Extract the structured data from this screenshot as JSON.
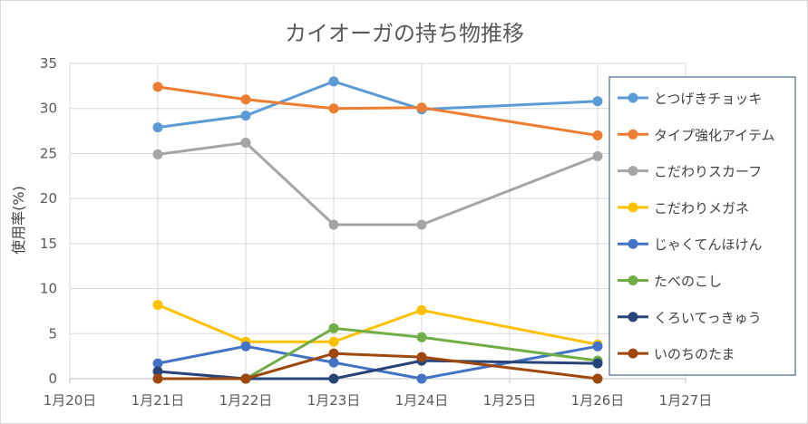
{
  "chart_data": {
    "type": "line",
    "title": "カイオーガの持ち物推移",
    "ylabel": "使用率(%)",
    "xlabel": "",
    "x_ticks": [
      "1月20日",
      "1月21日",
      "1月22日",
      "1月23日",
      "1月24日",
      "1月25日",
      "1月26日",
      "1月27日"
    ],
    "y_ticks": [
      "0",
      "5",
      "10",
      "15",
      "20",
      "25",
      "30",
      "35"
    ],
    "ylim": [
      0,
      35
    ],
    "grid": "horizontal",
    "legend_position": "right",
    "series": [
      {
        "name": "とつげきチョッキ",
        "color": "#5b9bd5",
        "points": [
          [
            1,
            27.9
          ],
          [
            2,
            29.2
          ],
          [
            3,
            33.0
          ],
          [
            4,
            29.9
          ],
          [
            6,
            30.8
          ]
        ]
      },
      {
        "name": "タイプ強化アイテム",
        "color": "#ed7d31",
        "points": [
          [
            1,
            32.4
          ],
          [
            2,
            31.0
          ],
          [
            3,
            30.0
          ],
          [
            4,
            30.1
          ],
          [
            6,
            27.0
          ]
        ]
      },
      {
        "name": "こだわりスカーフ",
        "color": "#a5a5a5",
        "points": [
          [
            1,
            24.9
          ],
          [
            2,
            26.2
          ],
          [
            3,
            17.1
          ],
          [
            4,
            17.1
          ],
          [
            6,
            24.7
          ]
        ]
      },
      {
        "name": "こだわりメガネ",
        "color": "#ffc000",
        "points": [
          [
            1,
            8.2
          ],
          [
            2,
            4.1
          ],
          [
            3,
            4.1
          ],
          [
            4,
            7.6
          ],
          [
            6,
            3.8
          ]
        ]
      },
      {
        "name": "じゃくてんほけん",
        "color": "#4472c4",
        "points": [
          [
            1,
            1.7
          ],
          [
            2,
            3.6
          ],
          [
            3,
            1.8
          ],
          [
            4,
            0.0
          ],
          [
            6,
            3.6
          ]
        ]
      },
      {
        "name": "たべのこし",
        "color": "#70ad47",
        "points": [
          [
            2,
            0.0
          ],
          [
            3,
            5.6
          ],
          [
            4,
            4.6
          ],
          [
            6,
            2.0
          ]
        ]
      },
      {
        "name": "くろいてっきゅう",
        "color": "#264478",
        "points": [
          [
            1,
            0.8
          ],
          [
            2,
            0.0
          ],
          [
            3,
            0.0
          ],
          [
            4,
            2.0
          ],
          [
            6,
            1.7
          ]
        ]
      },
      {
        "name": "いのちのたま",
        "color": "#9e480e",
        "points": [
          [
            1,
            0.0
          ],
          [
            2,
            0.0
          ],
          [
            3,
            2.8
          ],
          [
            4,
            2.4
          ],
          [
            6,
            0.0
          ]
        ]
      }
    ]
  }
}
